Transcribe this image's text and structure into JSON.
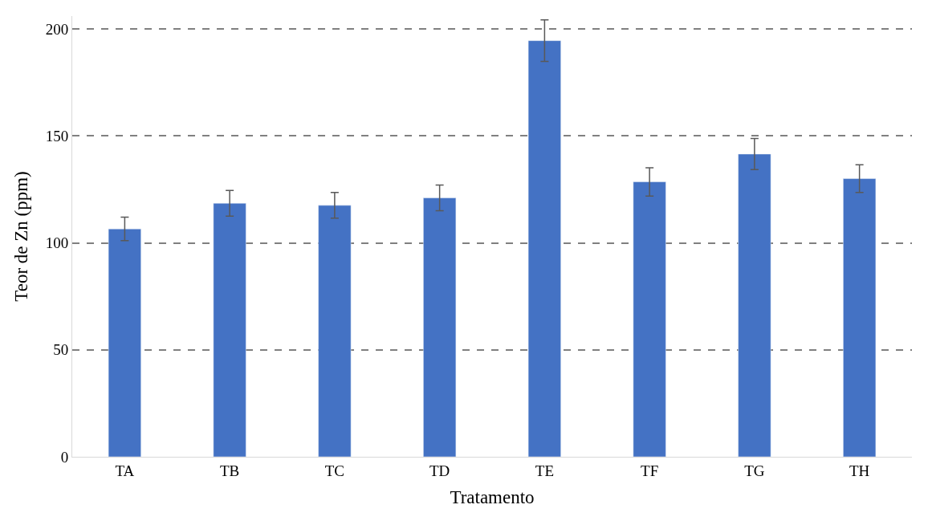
{
  "chart_data": {
    "type": "bar",
    "xlabel": "Tratamento",
    "ylabel": "Teor de Zn (ppm)",
    "categories": [
      "TA",
      "TB",
      "TC",
      "TD",
      "TE",
      "TF",
      "TG",
      "TH"
    ],
    "values": [
      106.5,
      118.5,
      117.5,
      121,
      194.5,
      128.5,
      141.5,
      130
    ],
    "errors": [
      5.5,
      6,
      6,
      6,
      9.7,
      6.6,
      7.3,
      6.5
    ],
    "color": "#4472c4",
    "ylim": [
      0,
      206
    ],
    "yticks": [
      0,
      50,
      100,
      150,
      200
    ],
    "grid": "y"
  }
}
